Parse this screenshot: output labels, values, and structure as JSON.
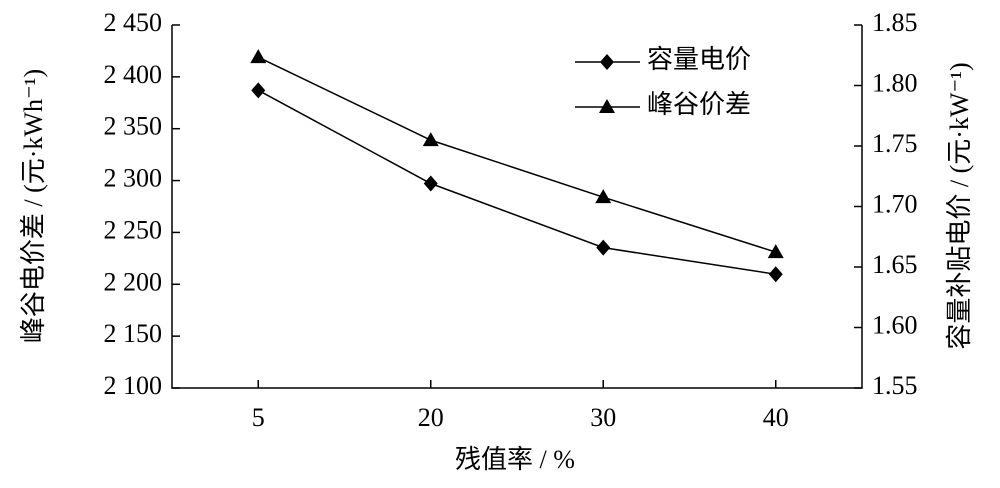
{
  "chart_data": {
    "type": "line",
    "x_label": "残值率 / %",
    "y_label": "峰谷电价差 / (元·kWh⁻¹)",
    "y2_label": "容量补贴电价 / (元·kW⁻¹)",
    "categories": [
      "5",
      "20",
      "30",
      "40"
    ],
    "series": [
      {
        "name": "容量电价",
        "color": "#000000",
        "marker": "diamond",
        "axis": "y2",
        "values": [
          1.796,
          1.719,
          1.666,
          1.644
        ]
      },
      {
        "name": "峰谷价差",
        "color": "#000000",
        "marker": "triangle",
        "values": [
          2419,
          2339,
          2284,
          2231
        ]
      }
    ],
    "ylim": [
      2100,
      2450
    ],
    "yticks": [
      {
        "value": 2100,
        "label": "2 100"
      },
      {
        "value": 2150,
        "label": "2 150"
      },
      {
        "value": 2200,
        "label": "2 200"
      },
      {
        "value": 2250,
        "label": "2 250"
      },
      {
        "value": 2300,
        "label": "2 300"
      },
      {
        "value": 2350,
        "label": "2 350"
      },
      {
        "value": 2400,
        "label": "2 400"
      },
      {
        "value": 2450,
        "label": "2 450"
      }
    ],
    "y2lim": [
      1.55,
      1.85
    ],
    "y2ticks": [
      1.55,
      {
        "value": 1.6,
        "label": "1.60"
      },
      1.65,
      {
        "value": 1.7,
        "label": "1.70"
      },
      1.75,
      {
        "value": 1.8,
        "label": "1.80"
      },
      1.85
    ],
    "legend": "upper right",
    "grid": false
  }
}
